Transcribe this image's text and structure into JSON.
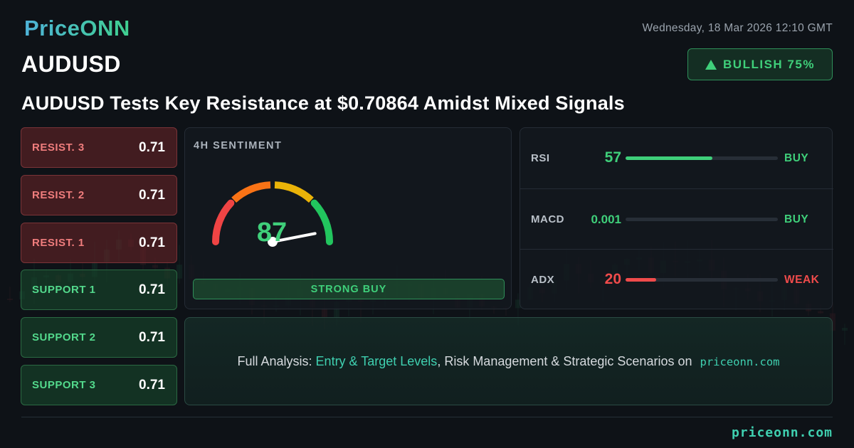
{
  "brand": {
    "logo_text": "PriceONN",
    "footer_site": "priceonn.com"
  },
  "header": {
    "datetime": "Wednesday, 18 Mar 2026 12:10 GMT",
    "symbol": "AUDUSD",
    "headline": "AUDUSD Tests Key Resistance at $0.70864 Amidst Mixed Signals",
    "bias": {
      "label": "BULLISH 75%",
      "icon": "triangle-up-icon",
      "color": "#3fcf7a"
    }
  },
  "levels": [
    {
      "kind": "resistance",
      "label": "RESIST. 3",
      "value": "0.71"
    },
    {
      "kind": "resistance",
      "label": "RESIST. 2",
      "value": "0.71"
    },
    {
      "kind": "resistance",
      "label": "RESIST. 1",
      "value": "0.71"
    },
    {
      "kind": "support",
      "label": "SUPPORT 1",
      "value": "0.71"
    },
    {
      "kind": "support",
      "label": "SUPPORT 2",
      "value": "0.71"
    },
    {
      "kind": "support",
      "label": "SUPPORT 3",
      "value": "0.71"
    }
  ],
  "sentiment": {
    "title": "4H SENTIMENT",
    "score": "87",
    "score_value": 87,
    "score_max": 100,
    "verdict": "STRONG BUY",
    "gauge_colors": [
      "#ef4444",
      "#f97316",
      "#eab308",
      "#22c55e"
    ]
  },
  "indicators": [
    {
      "name": "RSI",
      "value": "57",
      "level": 0.57,
      "signal": "BUY",
      "color": "#3fcf7a"
    },
    {
      "name": "MACD",
      "value": "0.001",
      "level": 0.0,
      "signal": "BUY",
      "color": "#3fcf7a"
    },
    {
      "name": "ADX",
      "value": "20",
      "level": 0.2,
      "signal": "WEAK",
      "color": "#ef4b4b"
    }
  ],
  "cta": {
    "prefix": "Full Analysis: ",
    "highlight": "Entry & Target Levels",
    "middle": ", Risk Management & Strategic Scenarios on ",
    "site": "priceonn.com"
  }
}
